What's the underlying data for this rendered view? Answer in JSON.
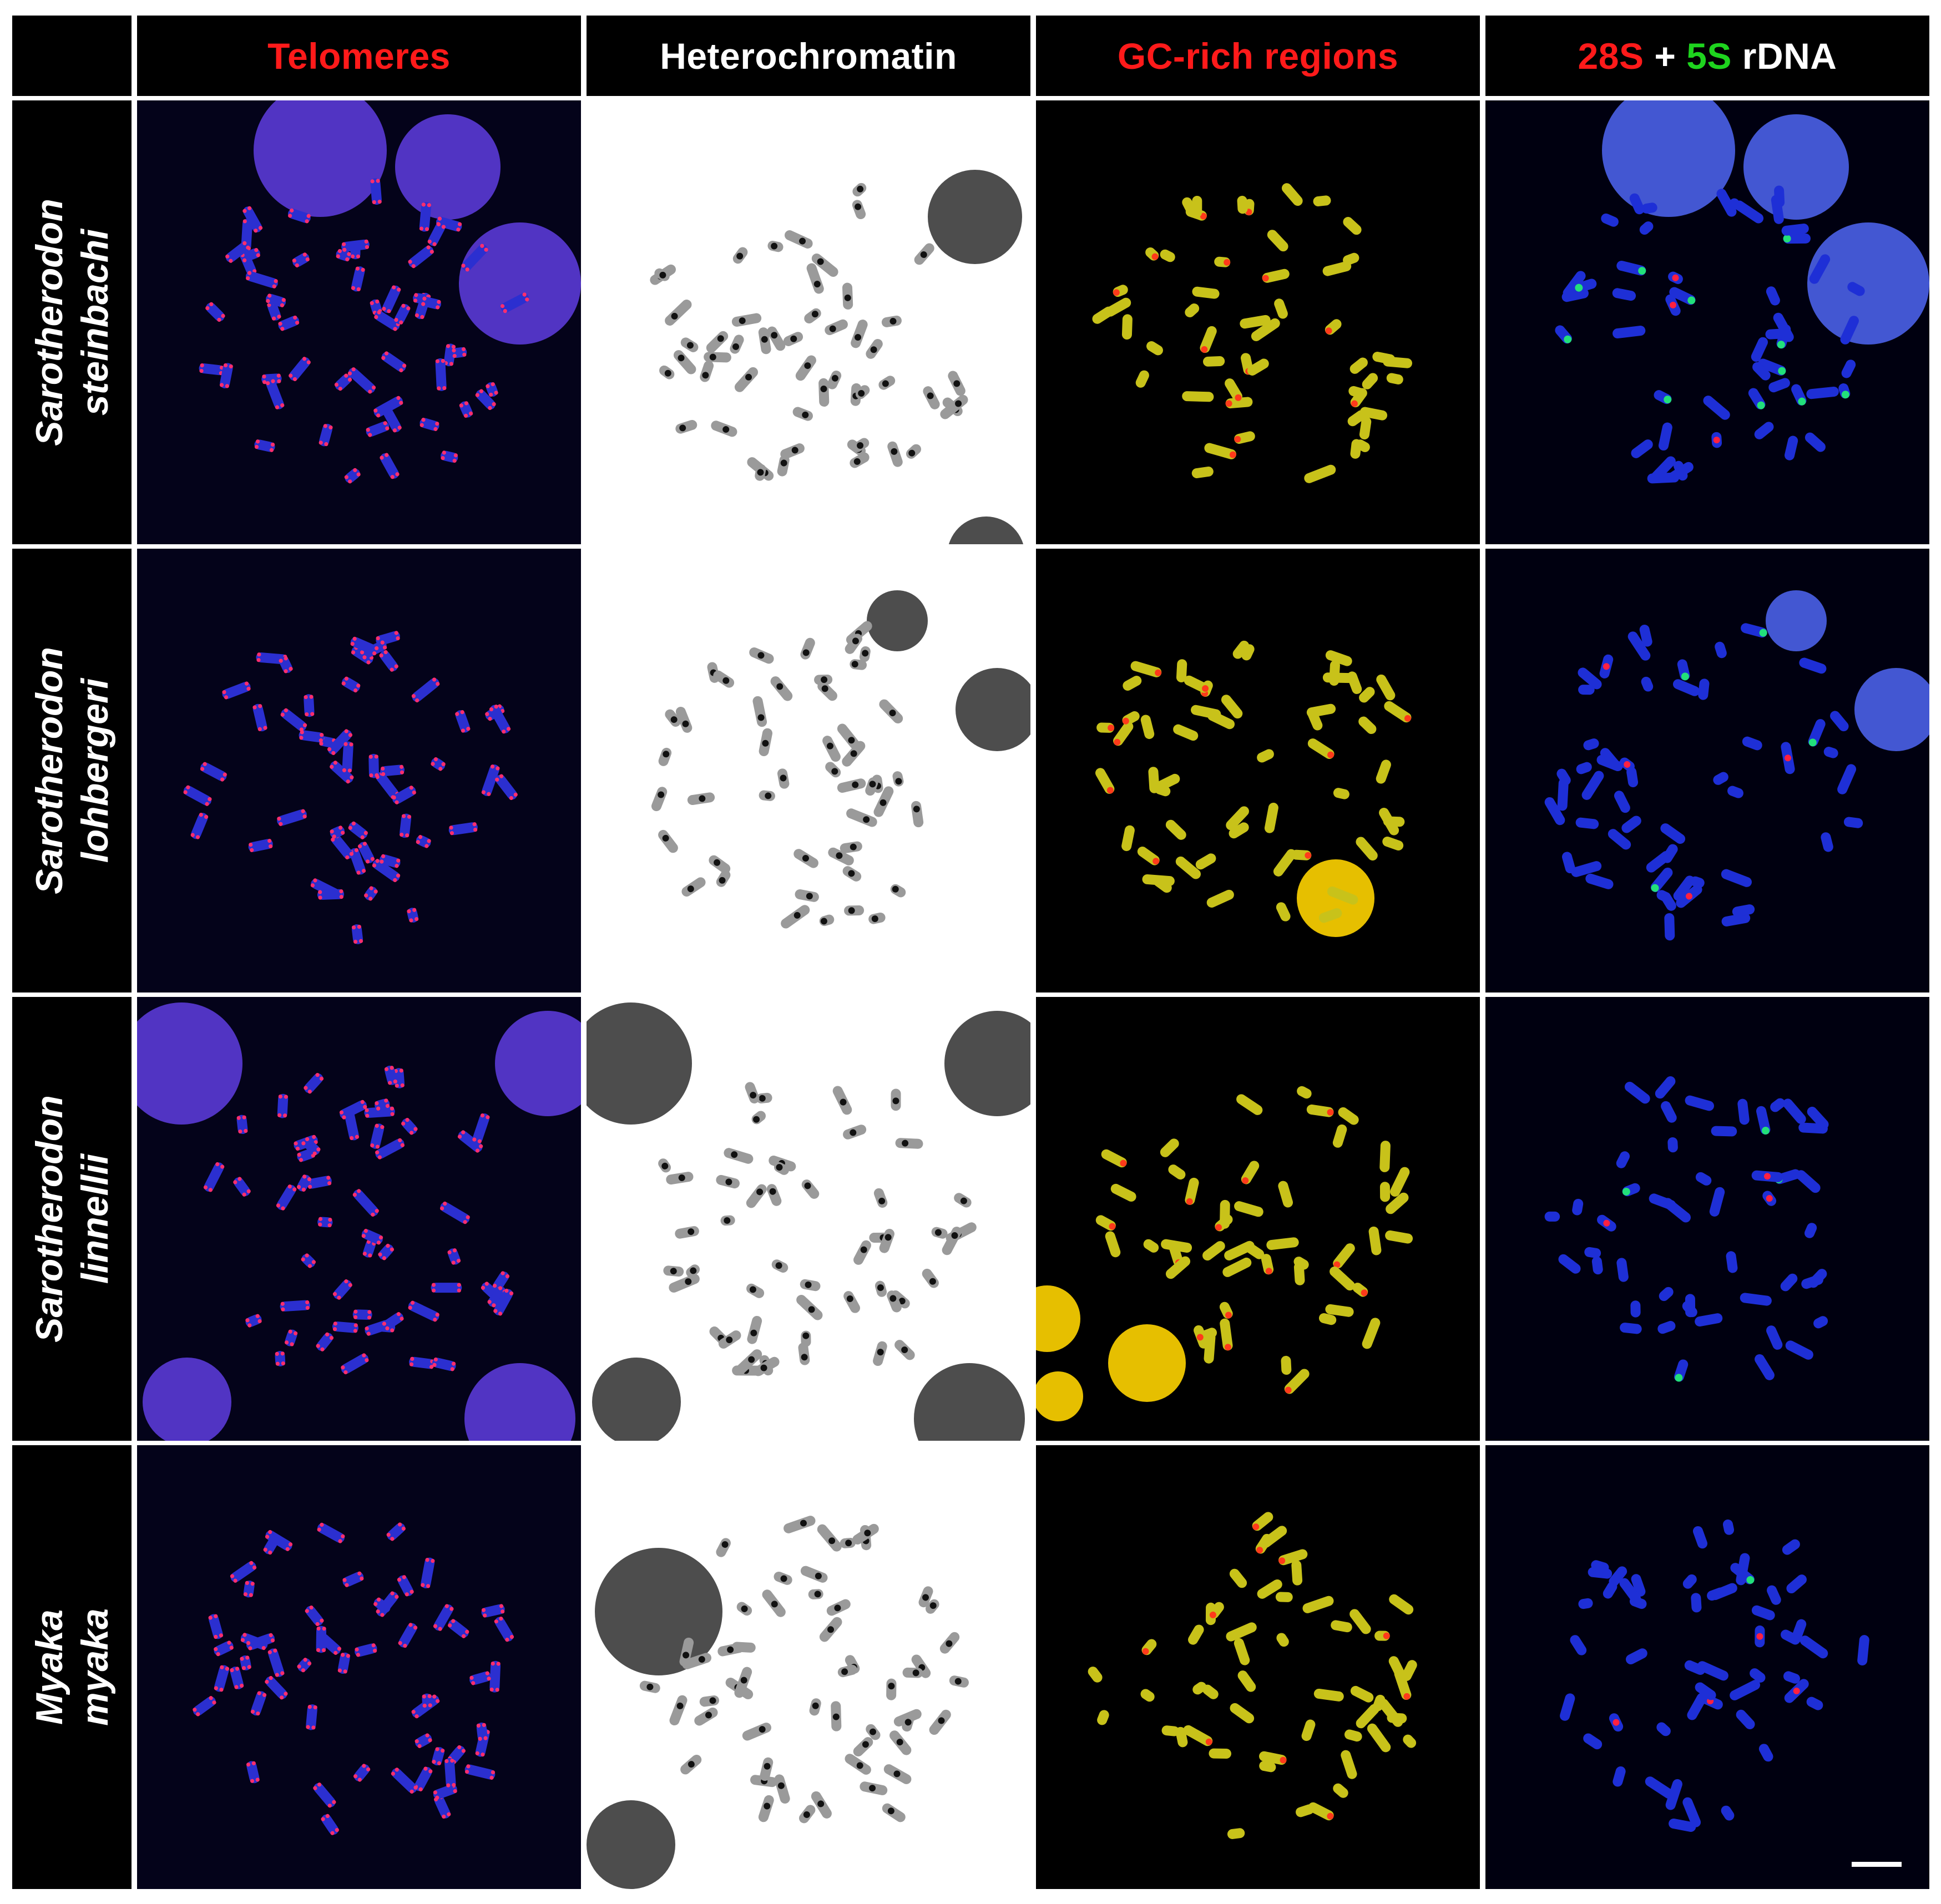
{
  "columns": [
    {
      "id": "telomeres",
      "parts": [
        {
          "text": "Telomeres",
          "color": "#ff1a1a"
        }
      ]
    },
    {
      "id": "heterochromatin",
      "parts": [
        {
          "text": "Heterochromatin",
          "color": "#ffffff"
        }
      ]
    },
    {
      "id": "gc",
      "parts": [
        {
          "text": "GC-rich regions",
          "color": "#ff1a1a"
        }
      ]
    },
    {
      "id": "rdna",
      "parts": [
        {
          "text": "28S",
          "color": "#ff1a1a"
        },
        {
          "text": " + ",
          "color": "#ffffff"
        },
        {
          "text": "5S",
          "color": "#1ed41e"
        },
        {
          "text": " rDNA",
          "color": "#ffffff"
        }
      ]
    }
  ],
  "rows": [
    {
      "id": "steinbachi",
      "genus": "Sarotherodon",
      "species": "steinbachi"
    },
    {
      "id": "lohbergeri",
      "genus": "Sarotherodon",
      "species": "lohbergeri"
    },
    {
      "id": "linnellii",
      "genus": "Sarotherodon",
      "species": "linnellii"
    },
    {
      "id": "myaka",
      "genus": "Myaka",
      "species": "myaka"
    }
  ],
  "panel_styles": {
    "telomeres": {
      "background": "#04031a",
      "chromosome": "#2b2fd0",
      "signal": "#ff2d6e",
      "nucleus": "#5a3ad6"
    },
    "heterochromatin": {
      "background": "#ffffff",
      "chromosome": "#9a9a9a",
      "signal": "#111111",
      "nucleus": "#3a3a3a"
    },
    "gc": {
      "background": "#000000",
      "chromosome": "#c8c21a",
      "signal": "#ff3a1a",
      "nucleus": "#ffd400"
    },
    "rdna": {
      "background": "#000010",
      "chromosome": "#1e2fd6",
      "signal": "#ff2040",
      "signal2": "#22e07a",
      "nucleus": "#4a60e8"
    }
  },
  "scale_bar": true
}
